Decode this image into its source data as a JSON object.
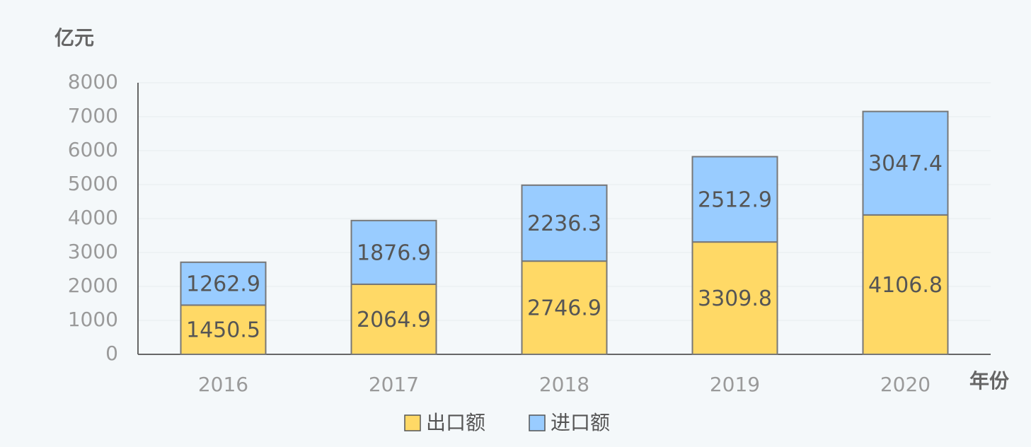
{
  "chart_data": {
    "type": "stacked_bar",
    "y_axis_label": "亿元",
    "x_axis_label": "年份",
    "categories": [
      "2016",
      "2017",
      "2018",
      "2019",
      "2020"
    ],
    "series": [
      {
        "name": "出口额",
        "color": "#ffd966",
        "values": [
          1450.5,
          2064.9,
          2746.9,
          3309.8,
          4106.8
        ]
      },
      {
        "name": "进口额",
        "color": "#99ccff",
        "values": [
          1262.9,
          1876.9,
          2236.3,
          2512.9,
          3047.4
        ]
      }
    ],
    "ylim": [
      0,
      8000
    ],
    "yticks": [
      0,
      1000,
      2000,
      3000,
      4000,
      5000,
      6000,
      7000,
      8000
    ],
    "grid": true
  }
}
